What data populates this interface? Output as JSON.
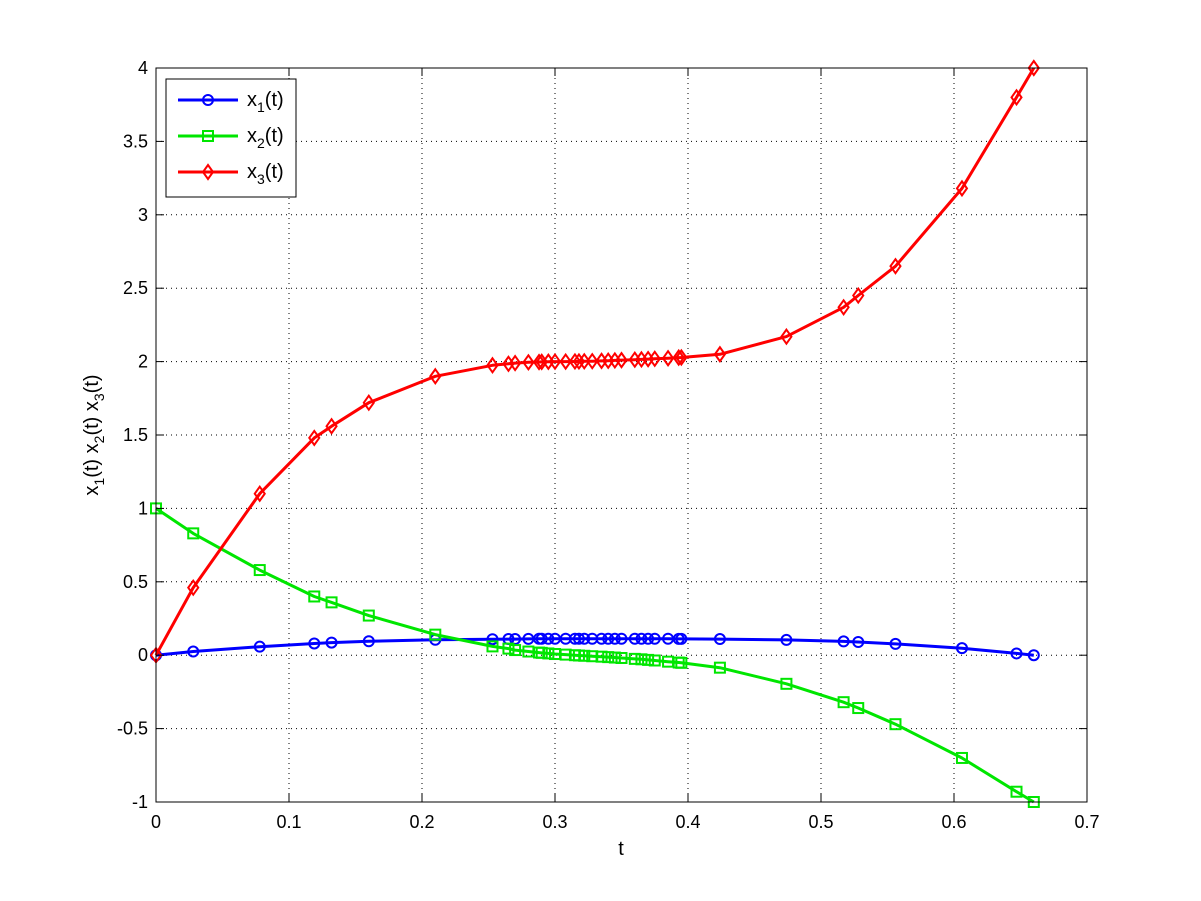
{
  "chart_data": {
    "type": "line",
    "xlabel": "t",
    "ylabel_parts": [
      "x",
      "1",
      "(t) x",
      "2",
      "(t) x",
      "3",
      "(t)"
    ],
    "xlim": [
      0,
      0.7
    ],
    "ylim": [
      -1,
      4
    ],
    "xticks": [
      0,
      0.1,
      0.2,
      0.3,
      0.4,
      0.5,
      0.6,
      0.7
    ],
    "xtick_labels": [
      "0",
      "0.1",
      "0.2",
      "0.3",
      "0.4",
      "0.5",
      "0.6",
      "0.7"
    ],
    "yticks": [
      -1,
      -0.5,
      0,
      0.5,
      1,
      1.5,
      2,
      2.5,
      3,
      3.5,
      4
    ],
    "ytick_labels": [
      "-1",
      "-0.5",
      "0",
      "0.5",
      "1",
      "1.5",
      "2",
      "2.5",
      "3",
      "3.5",
      "4"
    ],
    "grid": true,
    "legend_position": "top-left",
    "x": [
      0,
      0.028,
      0.078,
      0.119,
      0.132,
      0.16,
      0.21,
      0.253,
      0.265,
      0.27,
      0.28,
      0.288,
      0.29,
      0.295,
      0.3,
      0.308,
      0.315,
      0.318,
      0.322,
      0.328,
      0.335,
      0.34,
      0.345,
      0.35,
      0.36,
      0.365,
      0.37,
      0.375,
      0.385,
      0.393,
      0.395,
      0.424,
      0.474,
      0.517,
      0.528,
      0.556,
      0.606,
      0.647,
      0.66
    ],
    "series": [
      {
        "name_main": "x",
        "name_sub": "1",
        "name_tail": "(t)",
        "color": "#0000ff",
        "marker": "circle",
        "values": [
          0,
          0.025,
          0.058,
          0.08,
          0.086,
          0.095,
          0.105,
          0.109,
          0.11,
          0.11,
          0.111,
          0.112,
          0.112,
          0.112,
          0.112,
          0.112,
          0.112,
          0.112,
          0.112,
          0.112,
          0.112,
          0.112,
          0.112,
          0.112,
          0.112,
          0.112,
          0.112,
          0.112,
          0.112,
          0.111,
          0.111,
          0.11,
          0.104,
          0.094,
          0.09,
          0.077,
          0.048,
          0.012,
          0
        ]
      },
      {
        "name_main": "x",
        "name_sub": "2",
        "name_tail": "(t)",
        "color": "#00e600",
        "marker": "square",
        "values": [
          1,
          0.83,
          0.58,
          0.4,
          0.36,
          0.27,
          0.14,
          0.06,
          0.045,
          0.035,
          0.025,
          0.018,
          0.016,
          0.012,
          0.008,
          0.004,
          0.0,
          -0.002,
          -0.004,
          -0.007,
          -0.01,
          -0.013,
          -0.016,
          -0.019,
          -0.025,
          -0.028,
          -0.032,
          -0.036,
          -0.044,
          -0.05,
          -0.052,
          -0.085,
          -0.195,
          -0.32,
          -0.36,
          -0.47,
          -0.7,
          -0.93,
          -1.0
        ]
      },
      {
        "name_main": "x",
        "name_sub": "3",
        "name_tail": "(t)",
        "color": "#ff0000",
        "marker": "diamond",
        "values": [
          0,
          0.46,
          1.1,
          1.48,
          1.56,
          1.72,
          1.9,
          1.975,
          1.985,
          1.99,
          1.995,
          1.997,
          1.998,
          1.999,
          2.0,
          2.0,
          2.001,
          2.001,
          2.002,
          2.003,
          2.005,
          2.006,
          2.008,
          2.01,
          2.013,
          2.015,
          2.017,
          2.019,
          2.023,
          2.027,
          2.028,
          2.05,
          2.17,
          2.37,
          2.45,
          2.65,
          3.18,
          3.8,
          4.0
        ]
      }
    ]
  }
}
